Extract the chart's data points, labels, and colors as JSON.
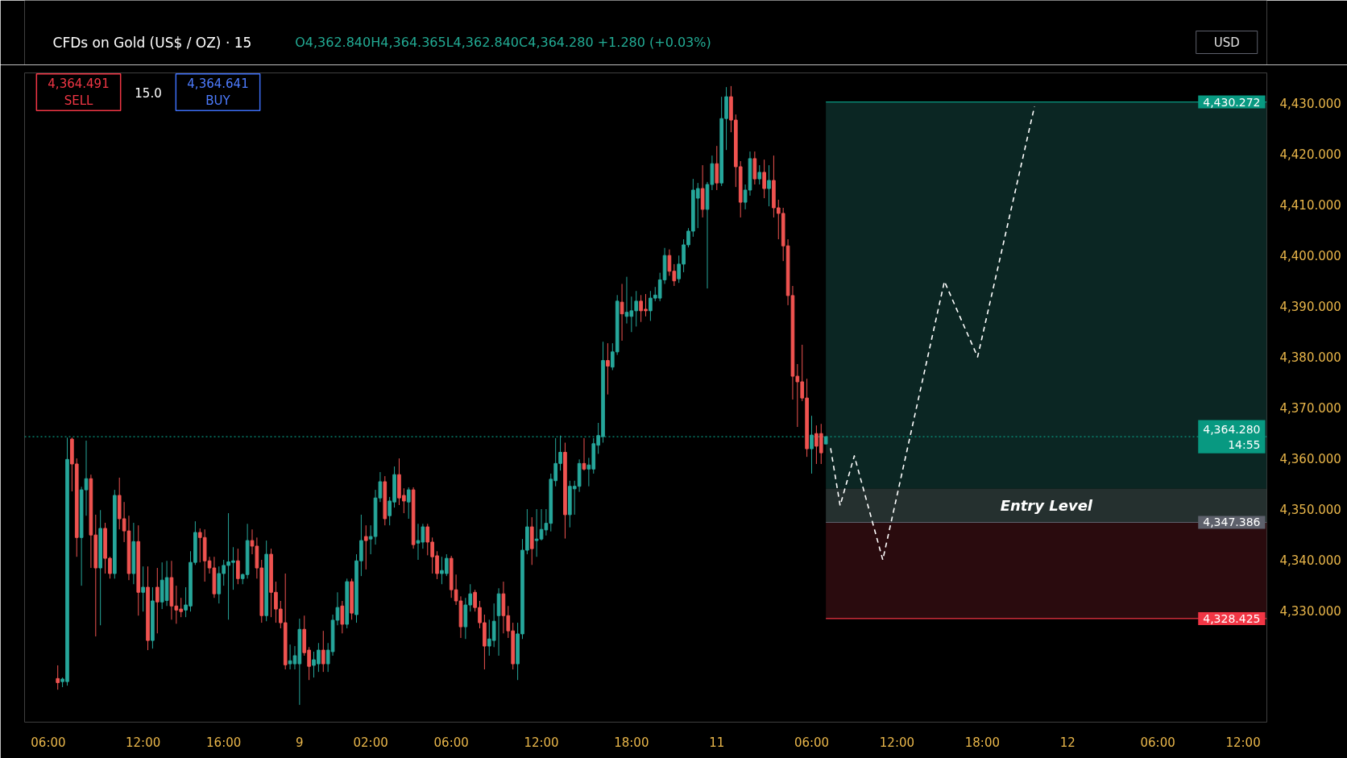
{
  "chart_data": {
    "type": "candlestick",
    "title": "CFDs on Gold (US$ / OZ) · 15",
    "subtitle": "O4,362.840H4,364.365L4,362.840C4,364.280 +1.280 (+0.03%)",
    "ylabel": "USD",
    "annotations": [
      "4,364.491\nSELL",
      "15.0",
      "4,364.641\nBUY"
    ],
    "ylim": [
      4308,
      4436
    ],
    "yticks": [
      {
        "value": 4330,
        "label": "4,330.000"
      },
      {
        "value": 4340,
        "label": "4,340.000"
      },
      {
        "value": 4350,
        "label": "4,350.000"
      },
      {
        "value": 4360,
        "label": "4,360.000"
      },
      {
        "value": 4370,
        "label": "4,370.000"
      },
      {
        "value": 4380,
        "label": "4,380.000"
      },
      {
        "value": 4390,
        "label": "4,390.000"
      },
      {
        "value": 4400,
        "label": "4,400.000"
      },
      {
        "value": 4410,
        "label": "4,410.000"
      },
      {
        "value": 4420,
        "label": "4,420.000"
      },
      {
        "value": 4430,
        "label": "4,430.000"
      }
    ],
    "categories": [
      "06:00",
      null,
      null,
      null,
      null,
      null,
      null,
      null,
      null,
      null,
      null,
      null,
      null,
      null,
      null,
      null,
      null,
      null,
      null,
      null,
      "12:00",
      null,
      null,
      null,
      null,
      null,
      null,
      null,
      null,
      null,
      null,
      null,
      null,
      null,
      null,
      null,
      null,
      "16:00",
      null,
      null,
      null,
      null,
      null,
      null,
      null,
      null,
      null,
      null,
      null,
      null,
      null,
      null,
      null,
      "9",
      null,
      null,
      null,
      null,
      null,
      null,
      null,
      null,
      null,
      null,
      null,
      null,
      null,
      null,
      "02:00",
      null,
      null,
      null,
      null,
      null,
      null,
      null,
      null,
      null,
      null,
      null,
      null,
      null,
      null,
      null,
      null,
      "06:00",
      null,
      null,
      null,
      null,
      null,
      null,
      null,
      null,
      null,
      null,
      null,
      null,
      null,
      null,
      null,
      null,
      null,
      null,
      "12:00",
      null,
      null,
      null,
      null,
      null,
      null,
      null,
      null,
      null,
      null,
      null,
      null,
      null,
      null,
      null,
      null,
      null,
      null,
      "18:00",
      null,
      null,
      null,
      null,
      null,
      null,
      null,
      null,
      null,
      null,
      null,
      null,
      null,
      null,
      null,
      null,
      null,
      "11",
      null,
      null,
      null,
      null,
      null,
      null,
      null,
      null,
      null,
      null,
      null,
      null,
      null,
      null,
      null,
      null,
      null,
      null,
      null,
      "06:00",
      null,
      null,
      null,
      null,
      null,
      null,
      null,
      null,
      null,
      null,
      null,
      null,
      null,
      null,
      null,
      null,
      null,
      "12:00",
      null,
      null,
      null,
      null,
      null,
      null,
      null,
      null,
      null,
      null,
      null,
      null,
      null,
      null,
      null,
      null,
      null,
      "18:00",
      null,
      null,
      null,
      null,
      null,
      null,
      null,
      null,
      null,
      null,
      null,
      null,
      null,
      null,
      null,
      null,
      null,
      "12",
      null,
      null,
      null,
      null,
      null,
      null,
      null,
      null,
      null,
      null,
      null,
      null,
      null,
      null,
      null,
      null,
      null,
      null,
      "06:00",
      null,
      null,
      null,
      null,
      null,
      null,
      null,
      null,
      null,
      null,
      null,
      null,
      null,
      null,
      null,
      null,
      null,
      "12:00"
    ],
    "ohlc": [
      null,
      null,
      [
        4316.6,
        4319.2,
        4314.4,
        4315.8
      ],
      [
        4316.0,
        4316.8,
        4314.9,
        4316.5
      ],
      [
        4316.0,
        4364.1,
        4315.2,
        4359.8
      ],
      [
        4363.8,
        4364.1,
        4353.5,
        4358.9
      ],
      [
        4358.9,
        4360.0,
        4340.6,
        4344.4
      ],
      [
        4344.4,
        4354.4,
        4334.9,
        4353.8
      ],
      [
        4353.8,
        4363.5,
        4348.7,
        4356.0
      ],
      [
        4356.0,
        4356.8,
        4338.4,
        4344.9
      ],
      [
        4344.9,
        4348.9,
        4324.9,
        4338.4
      ],
      [
        4338.4,
        4349.8,
        4327.1,
        4346.2
      ],
      [
        4346.2,
        4347.3,
        4337.3,
        4340.3
      ],
      [
        4340.3,
        4340.6,
        4336.3,
        4337.3
      ],
      [
        4337.3,
        4353.8,
        4336.3,
        4352.7
      ],
      [
        4352.7,
        4356.2,
        4346.0,
        4348.1
      ],
      [
        4348.1,
        4351.4,
        4343.5,
        4345.7
      ],
      [
        4345.7,
        4348.7,
        4336.0,
        4337.3
      ],
      [
        4337.3,
        4347.3,
        4335.2,
        4343.6
      ],
      [
        4343.6,
        4346.8,
        4329.0,
        4333.6
      ],
      [
        4333.6,
        4338.7,
        4329.8,
        4334.6
      ],
      [
        4334.6,
        4338.7,
        4322.2,
        4324.1
      ],
      [
        4324.1,
        4334.6,
        4322.5,
        4331.9
      ],
      [
        4334.6,
        4338.4,
        4325.5,
        4331.7
      ],
      [
        4331.7,
        4339.5,
        4330.3,
        4336.0
      ],
      [
        4332.0,
        4339.8,
        4330.9,
        4336.5
      ],
      [
        4336.5,
        4339.8,
        4328.2,
        4330.9
      ],
      [
        4330.9,
        4334.9,
        4327.4,
        4330.1
      ],
      [
        4330.3,
        4332.5,
        4328.7,
        4329.8
      ],
      [
        4330.1,
        4334.6,
        4328.7,
        4331.1
      ],
      [
        4330.9,
        4341.7,
        4329.8,
        4339.5
      ],
      [
        4339.5,
        4347.6,
        4339.0,
        4345.4
      ],
      [
        4345.4,
        4346.2,
        4339.5,
        4344.4
      ],
      [
        4344.4,
        4346.0,
        4335.7,
        4339.8
      ],
      [
        4339.8,
        4340.6,
        4337.3,
        4338.4
      ],
      [
        4338.4,
        4340.6,
        4332.5,
        4333.3
      ],
      [
        4333.3,
        4338.7,
        4331.4,
        4337.3
      ],
      [
        4337.3,
        4340.0,
        4334.9,
        4338.9
      ],
      [
        4338.9,
        4349.2,
        4328.2,
        4339.6
      ],
      [
        4339.5,
        4342.5,
        4334.1,
        4339.8
      ],
      [
        4339.8,
        4342.2,
        4335.2,
        4336.3
      ],
      [
        4336.3,
        4337.3,
        4335.2,
        4337.1
      ],
      [
        4337.1,
        4347.1,
        4336.3,
        4343.8
      ],
      [
        4343.8,
        4346.0,
        4341.1,
        4342.7
      ],
      [
        4342.7,
        4344.4,
        4336.3,
        4338.4
      ],
      [
        4338.4,
        4340.0,
        4327.6,
        4329.0
      ],
      [
        4329.0,
        4343.8,
        4327.9,
        4341.1
      ],
      [
        4341.1,
        4342.2,
        4328.7,
        4333.6
      ],
      [
        4333.6,
        4335.7,
        4327.6,
        4330.3
      ],
      [
        4330.3,
        4331.9,
        4326.5,
        4327.6
      ],
      [
        4327.6,
        4337.3,
        4318.4,
        4319.3
      ],
      [
        4319.5,
        4323.3,
        4318.4,
        4320.1
      ],
      [
        4319.5,
        4323.0,
        4318.4,
        4321.1
      ],
      [
        4319.5,
        4328.4,
        4311.4,
        4326.3
      ],
      [
        4326.3,
        4329.0,
        4321.1,
        4321.7
      ],
      [
        4322.2,
        4322.8,
        4316.3,
        4319.0
      ],
      [
        4319.2,
        4321.9,
        4316.8,
        4320.3
      ],
      [
        4319.5,
        4323.6,
        4317.9,
        4322.2
      ],
      [
        4322.2,
        4326.0,
        4317.9,
        4319.5
      ],
      [
        4319.5,
        4323.6,
        4317.9,
        4322.2
      ],
      [
        4321.9,
        4329.2,
        4321.1,
        4328.1
      ],
      [
        4328.1,
        4333.6,
        4327.1,
        4330.6
      ],
      [
        4330.9,
        4331.9,
        4325.5,
        4327.3
      ],
      [
        4327.3,
        4336.3,
        4326.5,
        4335.7
      ],
      [
        4335.7,
        4336.3,
        4328.2,
        4329.5
      ],
      [
        4329.2,
        4341.1,
        4327.6,
        4339.8
      ],
      [
        4339.8,
        4348.9,
        4336.8,
        4343.8
      ],
      [
        4344.6,
        4346.8,
        4338.1,
        4343.8
      ],
      [
        4344.1,
        4346.8,
        4341.1,
        4344.6
      ],
      [
        4344.6,
        4353.8,
        4343.0,
        4352.2
      ],
      [
        4352.2,
        4357.3,
        4351.4,
        4355.4
      ],
      [
        4355.4,
        4356.5,
        4346.8,
        4348.1
      ],
      [
        4348.7,
        4352.4,
        4346.8,
        4351.6
      ],
      [
        4351.4,
        4358.4,
        4350.3,
        4356.8
      ],
      [
        4356.8,
        4360.0,
        4350.8,
        4352.2
      ],
      [
        4352.7,
        4354.1,
        4349.2,
        4351.6
      ],
      [
        4351.4,
        4354.3,
        4348.1,
        4353.8
      ],
      [
        4353.8,
        4354.3,
        4342.2,
        4343.0
      ],
      [
        4343.3,
        4347.1,
        4340.0,
        4343.8
      ],
      [
        4343.5,
        4347.1,
        4342.2,
        4346.5
      ],
      [
        4346.5,
        4347.1,
        4340.9,
        4343.5
      ],
      [
        4343.5,
        4344.4,
        4337.3,
        4340.6
      ],
      [
        4340.8,
        4341.7,
        4336.2,
        4337.3
      ],
      [
        4337.3,
        4340.6,
        4335.2,
        4337.9
      ],
      [
        4337.3,
        4341.1,
        4336.8,
        4340.3
      ],
      [
        4340.3,
        4340.8,
        4332.5,
        4334.1
      ],
      [
        4334.1,
        4337.1,
        4331.1,
        4331.9
      ],
      [
        4331.9,
        4332.8,
        4324.6,
        4326.8
      ],
      [
        4326.8,
        4332.5,
        4324.4,
        4331.1
      ],
      [
        4331.1,
        4335.2,
        4329.8,
        4333.3
      ],
      [
        4333.6,
        4334.1,
        4329.8,
        4330.6
      ],
      [
        4330.6,
        4331.9,
        4326.5,
        4327.6
      ],
      [
        4327.6,
        4329.2,
        4318.4,
        4323.0
      ],
      [
        4323.0,
        4328.2,
        4321.1,
        4324.4
      ],
      [
        4324.1,
        4331.4,
        4322.8,
        4327.9
      ],
      [
        4329.0,
        4334.4,
        4321.1,
        4333.3
      ],
      [
        4333.3,
        4335.7,
        4325.5,
        4329.0
      ],
      [
        4329.0,
        4330.9,
        4324.6,
        4326.0
      ],
      [
        4326.0,
        4327.6,
        4318.4,
        4319.5
      ],
      [
        4319.5,
        4327.6,
        4316.3,
        4325.4
      ],
      [
        4325.4,
        4344.1,
        4324.4,
        4341.9
      ],
      [
        4341.9,
        4350.0,
        4341.1,
        4346.5
      ],
      [
        4346.5,
        4348.4,
        4339.0,
        4342.2
      ],
      [
        4343.8,
        4350.0,
        4340.6,
        4344.1
      ],
      [
        4344.1,
        4350.0,
        4343.8,
        4346.0
      ],
      [
        4345.9,
        4350.0,
        4344.8,
        4347.2
      ],
      [
        4347.2,
        4357.0,
        4345.6,
        4355.9
      ],
      [
        4355.6,
        4364.0,
        4354.5,
        4359.0
      ],
      [
        4359.0,
        4364.5,
        4357.6,
        4361.2
      ],
      [
        4361.2,
        4363.1,
        4344.2,
        4348.9
      ],
      [
        4348.9,
        4355.6,
        4346.4,
        4354.5
      ],
      [
        4354.0,
        4355.6,
        4348.9,
        4354.5
      ],
      [
        4354.5,
        4359.8,
        4353.4,
        4359.0
      ],
      [
        4359.0,
        4364.0,
        4357.6,
        4357.9
      ],
      [
        4357.9,
        4360.1,
        4354.5,
        4358.7
      ],
      [
        4357.9,
        4364.0,
        4357.0,
        4362.9
      ],
      [
        4362.6,
        4367.0,
        4360.9,
        4364.5
      ],
      [
        4364.3,
        4383.0,
        4363.1,
        4379.3
      ],
      [
        4379.3,
        4382.7,
        4372.6,
        4378.2
      ],
      [
        4378.0,
        4382.7,
        4377.4,
        4381.0
      ],
      [
        4381.0,
        4392.2,
        4380.4,
        4391.0
      ],
      [
        4390.8,
        4394.4,
        4383.2,
        4388.5
      ],
      [
        4388.0,
        4395.8,
        4386.6,
        4388.8
      ],
      [
        4388.0,
        4391.9,
        4384.9,
        4389.1
      ],
      [
        4389.1,
        4393.0,
        4386.0,
        4391.0
      ],
      [
        4391.0,
        4392.2,
        4386.9,
        4389.1
      ],
      [
        4389.4,
        4392.4,
        4388.0,
        4389.1
      ],
      [
        4389.1,
        4393.0,
        4387.1,
        4391.6
      ],
      [
        4391.6,
        4393.8,
        4391.0,
        4392.2
      ],
      [
        4391.6,
        4396.6,
        4391.0,
        4395.2
      ],
      [
        4395.2,
        4401.5,
        4394.4,
        4400.0
      ],
      [
        4400.0,
        4401.2,
        4396.0,
        4396.9
      ],
      [
        4396.9,
        4398.3,
        4394.0,
        4395.0
      ],
      [
        4395.4,
        4400.0,
        4394.6,
        4398.3
      ],
      [
        4398.3,
        4403.2,
        4396.7,
        4402.1
      ],
      [
        4402.1,
        4405.4,
        4401.6,
        4404.8
      ],
      [
        4404.8,
        4415.1,
        4403.7,
        4412.9
      ],
      [
        4411.3,
        4414.3,
        4405.4,
        4413.2
      ],
      [
        4413.2,
        4417.8,
        4407.5,
        4409.1
      ],
      [
        4409.1,
        4414.5,
        4393.5,
        4414.0
      ],
      [
        4414.0,
        4419.7,
        4412.9,
        4418.1
      ],
      [
        4418.1,
        4421.6,
        4412.9,
        4414.3
      ],
      [
        4414.3,
        4431.3,
        4413.7,
        4427.0
      ],
      [
        4427.0,
        4433.2,
        4420.8,
        4431.3
      ],
      [
        4431.3,
        4433.4,
        4424.3,
        4426.7
      ],
      [
        4426.7,
        4427.8,
        4413.5,
        4417.5
      ],
      [
        4417.5,
        4418.6,
        4407.5,
        4410.5
      ],
      [
        4410.5,
        4414.0,
        4409.1,
        4412.9
      ],
      [
        4412.9,
        4420.5,
        4411.8,
        4419.1
      ],
      [
        4419.1,
        4420.5,
        4414.0,
        4415.1
      ],
      [
        4415.1,
        4417.8,
        4414.0,
        4416.4
      ],
      [
        4416.4,
        4418.9,
        4411.3,
        4413.2
      ],
      [
        4413.2,
        4417.8,
        4409.7,
        4414.8
      ],
      [
        4414.8,
        4419.7,
        4407.5,
        4409.4
      ],
      [
        4409.4,
        4411.0,
        4403.2,
        4408.3
      ],
      [
        4408.3,
        4409.4,
        4398.9,
        4401.9
      ],
      [
        4401.9,
        4403.2,
        4390.2,
        4392.1
      ],
      [
        4392.1,
        4394.0,
        4371.6,
        4376.2
      ],
      [
        4376.2,
        4378.6,
        4366.2,
        4375.1
      ],
      [
        4375.1,
        4382.4,
        4371.3,
        4371.9
      ],
      [
        4371.9,
        4375.7,
        4360.3,
        4361.9
      ],
      [
        4361.9,
        4368.4,
        4357.0,
        4364.6
      ],
      [
        4364.9,
        4366.5,
        4358.9,
        4362.4
      ],
      [
        4364.9,
        4366.8,
        4358.9,
        4361.1
      ],
      [
        4362.84,
        4364.365,
        4362.84,
        4364.28
      ],
      null,
      null,
      null,
      null,
      null,
      null,
      null,
      null,
      null,
      null,
      null,
      null,
      null,
      null,
      null,
      null,
      null,
      null,
      null,
      null,
      null,
      null,
      null,
      null,
      null,
      null,
      null,
      null,
      null,
      null,
      null,
      null,
      null,
      null,
      null,
      null,
      null,
      null,
      null,
      null,
      null,
      null,
      null,
      null,
      null,
      null,
      null,
      null,
      null,
      null,
      null,
      null,
      null,
      null,
      null,
      null,
      null,
      null,
      null,
      null,
      null,
      null,
      null,
      null,
      null,
      null,
      null,
      null,
      null,
      null,
      null,
      null,
      null,
      null,
      null,
      null,
      null,
      null,
      null,
      null,
      null,
      null,
      null,
      null,
      null,
      null,
      null,
      null
    ],
    "colors": [
      null,
      null,
      "#ef5350",
      "#26a69a",
      "#26a69a",
      "#ef5350",
      "#ef5350",
      "#26a69a",
      "#26a69a",
      "#ef5350",
      "#ef5350",
      "#26a69a",
      "#ef5350",
      "#ef5350",
      "#26a69a",
      "#ef5350",
      "#ef5350",
      "#ef5350",
      "#26a69a",
      "#ef5350",
      "#26a69a",
      "#ef5350",
      "#26a69a",
      "#ef5350",
      "#26a69a",
      "#26a69a",
      "#ef5350",
      "#ef5350",
      "#ef5350",
      "#26a69a",
      "#26a69a",
      "#26a69a",
      "#ef5350",
      "#ef5350",
      "#ef5350",
      "#ef5350",
      "#26a69a",
      "#26a69a",
      "#26a69a",
      "#26a69a",
      "#ef5350",
      "#26a69a",
      "#26a69a",
      "#ef5350",
      "#ef5350",
      "#ef5350",
      "#26a69a",
      "#ef5350",
      "#ef5350",
      "#ef5350",
      "#ef5350",
      "#26a69a",
      "#26a69a",
      "#26a69a",
      "#ef5350",
      "#ef5350",
      "#26a69a",
      "#26a69a",
      "#ef5350",
      "#26a69a",
      "#26a69a",
      "#26a69a",
      "#ef5350",
      "#26a69a",
      "#ef5350",
      "#26a69a",
      "#26a69a",
      "#ef5350",
      "#26a69a",
      "#26a69a",
      "#26a69a",
      "#ef5350",
      "#26a69a",
      "#26a69a",
      "#ef5350",
      "#ef5350",
      "#26a69a",
      "#ef5350",
      "#26a69a",
      "#26a69a",
      "#ef5350",
      "#ef5350",
      "#ef5350",
      "#26a69a",
      "#26a69a",
      "#ef5350",
      "#ef5350",
      "#ef5350",
      "#26a69a",
      "#26a69a",
      "#ef5350",
      "#ef5350",
      "#ef5350",
      "#26a69a",
      "#26a69a",
      "#26a69a",
      "#ef5350",
      "#ef5350",
      "#ef5350",
      "#26a69a",
      "#26a69a",
      "#26a69a",
      "#ef5350",
      "#26a69a",
      "#26a69a",
      "#26a69a",
      "#26a69a",
      "#26a69a",
      "#26a69a",
      "#ef5350",
      "#26a69a",
      "#26a69a",
      "#26a69a",
      "#ef5350",
      "#26a69a",
      "#26a69a",
      "#26a69a",
      "#26a69a",
      "#ef5350",
      "#26a69a",
      "#26a69a",
      "#ef5350",
      "#26a69a",
      "#26a69a",
      "#26a69a",
      "#ef5350",
      "#ef5350",
      "#26a69a",
      "#26a69a",
      "#26a69a",
      "#26a69a",
      "#ef5350",
      "#ef5350",
      "#26a69a",
      "#26a69a",
      "#26a69a",
      "#26a69a",
      "#26a69a",
      "#ef5350",
      "#26a69a",
      "#26a69a",
      "#ef5350",
      "#26a69a",
      "#26a69a",
      "#ef5350",
      "#ef5350",
      "#ef5350",
      "#26a69a",
      "#26a69a",
      "#ef5350",
      "#26a69a",
      "#ef5350",
      "#26a69a",
      "#ef5350",
      "#ef5350",
      "#ef5350",
      "#ef5350",
      "#ef5350",
      "#ef5350",
      "#ef5350",
      "#ef5350",
      "#26a69a",
      "#ef5350",
      "#ef5350",
      "#26a69a",
      null,
      null,
      null,
      null,
      null,
      null,
      null,
      null,
      null,
      null,
      null,
      null,
      null,
      null,
      null,
      null,
      null,
      null,
      null,
      null,
      null,
      null,
      null,
      null,
      null,
      null,
      null,
      null,
      null,
      null,
      null,
      null,
      null,
      null,
      null,
      null,
      null,
      null,
      null,
      null,
      null,
      null,
      null,
      null,
      null,
      null,
      null,
      null,
      null,
      null,
      null,
      null,
      null,
      null,
      null,
      null,
      null,
      null,
      null,
      null,
      null,
      null,
      null,
      null,
      null,
      null,
      null,
      null,
      null,
      null,
      null,
      null,
      null,
      null,
      null,
      null,
      null,
      null,
      null,
      null,
      null,
      null,
      null,
      null,
      null,
      null,
      null,
      null
    ],
    "series": [
      {
        "type": "line",
        "color": "#ffffff",
        "line_style": "dashed",
        "values": [
          null,
          null,
          null,
          null,
          null,
          null,
          null,
          null,
          null,
          null,
          null,
          null,
          null,
          null,
          null,
          null,
          null,
          null,
          null,
          null,
          null,
          null,
          null,
          null,
          null,
          null,
          null,
          null,
          null,
          null,
          null,
          null,
          null,
          null,
          null,
          null,
          null,
          null,
          null,
          null,
          null,
          null,
          null,
          null,
          null,
          null,
          null,
          null,
          null,
          null,
          null,
          null,
          null,
          null,
          null,
          null,
          null,
          null,
          null,
          null,
          null,
          null,
          null,
          null,
          null,
          null,
          null,
          null,
          null,
          null,
          null,
          null,
          null,
          null,
          null,
          null,
          null,
          null,
          null,
          null,
          null,
          null,
          null,
          null,
          null,
          null,
          null,
          null,
          null,
          null,
          null,
          null,
          null,
          null,
          null,
          null,
          null,
          null,
          null,
          null,
          null,
          null,
          null,
          null,
          null,
          null,
          null,
          null,
          null,
          null,
          null,
          null,
          null,
          null,
          null,
          null,
          null,
          null,
          null,
          null,
          null,
          null,
          null,
          null,
          null,
          null,
          null,
          null,
          null,
          null,
          null,
          null,
          null,
          null,
          null,
          null,
          null,
          null,
          null,
          null,
          null,
          null,
          null,
          null,
          null,
          null,
          null,
          null,
          null,
          null,
          null,
          null,
          null,
          null,
          null,
          null,
          null,
          null,
          null,
          null,
          null,
          null,
          null,
          null,
          null,
          4362.0,
          null,
          4350.7,
          null,
          null,
          4360.5,
          null,
          null,
          null,
          null,
          null,
          4340.0,
          null,
          null,
          null,
          null,
          null,
          null,
          null,
          null,
          null,
          null,
          null,
          null,
          4394.9,
          null,
          null,
          null,
          null,
          null,
          null,
          4380.0,
          null,
          null,
          null,
          null,
          null,
          null,
          null,
          null,
          null,
          null,
          null,
          4429.4,
          null,
          null,
          null,
          null,
          null,
          null,
          null,
          null,
          null,
          null,
          null,
          null,
          null,
          null,
          null,
          null,
          null,
          null,
          null,
          null,
          null,
          null,
          null,
          null,
          null,
          null,
          null,
          null,
          null,
          null,
          null,
          null,
          null,
          null,
          null,
          null,
          null,
          null,
          null,
          null,
          null,
          null,
          null,
          null
        ]
      }
    ],
    "bands": [
      {
        "axis": "y",
        "from": 4354.0,
        "to": 4430.272,
        "color": "#0b2623"
      },
      {
        "axis": "y",
        "from": 4347.386,
        "to": 4354.0,
        "label": "Entry Level",
        "color": "#25302f"
      },
      {
        "axis": "y",
        "from": 4328.425,
        "to": 4347.386,
        "color": "#2a0b0e"
      }
    ],
    "ref_lines": [
      {
        "axis": "y",
        "value": 4430.272,
        "label": "4,430.272",
        "color": "#089981"
      },
      {
        "axis": "y",
        "value": 4364.28,
        "label": "4,364.280\n14:55",
        "color": "#089981",
        "line_style": "dotted"
      },
      {
        "axis": "y",
        "value": 4347.386,
        "label": "4,347.386",
        "color": "#5d606b"
      },
      {
        "axis": "y",
        "value": 4328.425,
        "label": "4,328.425",
        "color": "#f23645"
      }
    ],
    "grid": false
  }
}
